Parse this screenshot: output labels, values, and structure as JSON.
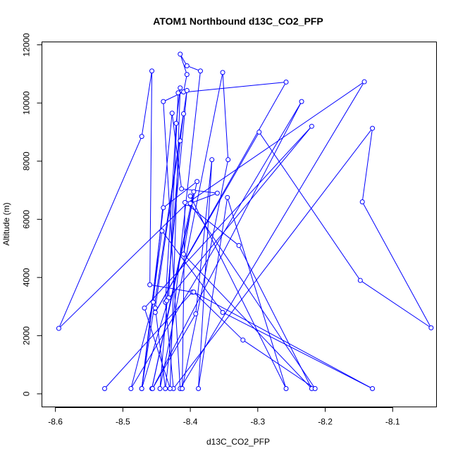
{
  "chart_data": {
    "type": "line",
    "title": "ATOM1 Northbound d13C_CO2_PFP",
    "xlabel": "d13C_CO2_PFP",
    "ylabel": "Altitude (m)",
    "xlim": [
      -8.62,
      -8.035
    ],
    "ylim": [
      -450,
      12100
    ],
    "x_ticks": [
      -8.6,
      -8.5,
      -8.4,
      -8.3,
      -8.2,
      -8.1
    ],
    "x_tick_labels": [
      "-8.6",
      "-8.5",
      "-8.4",
      "-8.3",
      "-8.2",
      "-8.1"
    ],
    "y_ticks": [
      0,
      2000,
      4000,
      6000,
      8000,
      10000,
      12000
    ],
    "y_tick_labels": [
      "0",
      "2000",
      "4000",
      "6000",
      "8000",
      "10000",
      "12000"
    ],
    "grid": false,
    "colors": {
      "series": "#0000ff",
      "axis": "#000000"
    },
    "series": [
      {
        "marker": "open-circle",
        "points": [
          [
            -8.527,
            180
          ],
          [
            -8.397,
            3500
          ],
          [
            -8.46,
            3750
          ],
          [
            -8.457,
            11100
          ],
          [
            -8.472,
            8850
          ],
          [
            -8.595,
            2250
          ],
          [
            -8.405,
            6550
          ],
          [
            -8.142,
            10730
          ],
          [
            -8.415,
            180
          ],
          [
            -8.44,
            10050
          ],
          [
            -8.41,
            10380
          ],
          [
            -8.405,
            10980
          ],
          [
            -8.415,
            11680
          ],
          [
            -8.405,
            11280
          ],
          [
            -8.385,
            11100
          ],
          [
            -8.437,
            180
          ],
          [
            -8.452,
            2950
          ],
          [
            -8.41,
            9630
          ],
          [
            -8.415,
            8700
          ],
          [
            -8.445,
            180
          ],
          [
            -8.352,
            11050
          ],
          [
            -8.344,
            8050
          ],
          [
            -8.412,
            180
          ],
          [
            -8.408,
            6580
          ],
          [
            -8.328,
            5100
          ],
          [
            -8.22,
            180
          ],
          [
            -8.41,
            4800
          ],
          [
            -8.395,
            6950
          ],
          [
            -8.457,
            180
          ],
          [
            -8.39,
            7300
          ],
          [
            -8.44,
            6400
          ],
          [
            -8.472,
            180
          ],
          [
            -8.432,
            3300
          ],
          [
            -8.418,
            10350
          ],
          [
            -8.258,
            10720
          ],
          [
            -8.452,
            2800
          ],
          [
            -8.298,
            9000
          ],
          [
            -8.148,
            3900
          ],
          [
            -8.043,
            2270
          ],
          [
            -8.145,
            6600
          ],
          [
            -8.13,
            9130
          ],
          [
            -8.425,
            180
          ],
          [
            -8.437,
            3150
          ],
          [
            -8.421,
            9300
          ],
          [
            -8.415,
            10520
          ],
          [
            -8.43,
            180
          ],
          [
            -8.468,
            2950
          ],
          [
            -8.22,
            9200
          ],
          [
            -8.435,
            3200
          ],
          [
            -8.405,
            10430
          ],
          [
            -8.472,
            180
          ],
          [
            -8.442,
            5600
          ],
          [
            -8.352,
            2800
          ],
          [
            -8.13,
            180
          ],
          [
            -8.395,
            3500
          ],
          [
            -8.322,
            1850
          ],
          [
            -8.215,
            180
          ],
          [
            -8.4,
            6550
          ],
          [
            -8.36,
            6900
          ],
          [
            -8.413,
            7050
          ],
          [
            -8.427,
            9650
          ],
          [
            -8.455,
            3150
          ],
          [
            -8.488,
            180
          ],
          [
            -8.235,
            10050
          ],
          [
            -8.456,
            180
          ],
          [
            -8.392,
            2750
          ],
          [
            -8.368,
            8050
          ],
          [
            -8.388,
            180
          ],
          [
            -8.345,
            6750
          ],
          [
            -8.258,
            180
          ],
          [
            -8.4,
            6800
          ]
        ]
      }
    ]
  }
}
